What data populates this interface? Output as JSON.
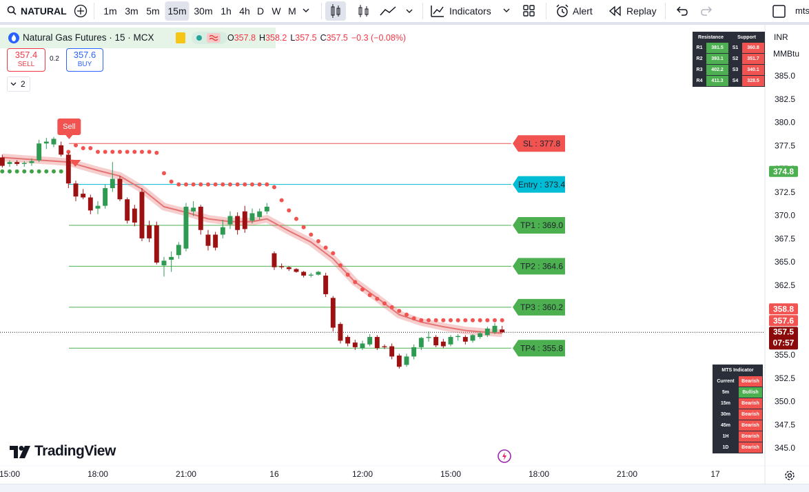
{
  "toolbar": {
    "symbol": "NATURAL",
    "intervals": [
      "1m",
      "3m",
      "5m",
      "15m",
      "30m",
      "1h",
      "4h",
      "D",
      "W",
      "M"
    ],
    "active_interval": "15m",
    "indicators": "Indicators",
    "alert": "Alert",
    "replay": "Replay",
    "user": "mts"
  },
  "legend": {
    "title": "Natural Gas Futures · 15 · MCX",
    "ohlc": [
      {
        "key": "O",
        "value": "357.8"
      },
      {
        "key": "H",
        "value": "358.2"
      },
      {
        "key": "L",
        "value": "357.5"
      },
      {
        "key": "C",
        "value": "357.5"
      }
    ],
    "change": "−0.3 (−0.08%)"
  },
  "order": {
    "sell_price": "357.4",
    "sell": "SELL",
    "spread": "0.2",
    "buy_price": "357.6",
    "buy": "BUY",
    "indicator_count": "2"
  },
  "price_scale": {
    "currency": "INR",
    "unit": "MMBtu"
  },
  "chart_data": {
    "type": "candlestick",
    "xlim": [
      -0.31,
      103.75
    ],
    "ylim": [
      343.15,
      390.26
    ],
    "grid": false,
    "xticks": [
      {
        "value": 1,
        "label": "15:00"
      },
      {
        "value": 13,
        "label": "18:00"
      },
      {
        "value": 25,
        "label": "21:00"
      },
      {
        "value": 37,
        "label": "16"
      },
      {
        "value": 49,
        "label": "12:00"
      },
      {
        "value": 61,
        "label": "15:00"
      },
      {
        "value": 73,
        "label": "18:00"
      },
      {
        "value": 85,
        "label": "21:00"
      },
      {
        "value": 97,
        "label": "17"
      }
    ],
    "yticks": [
      {
        "value": 345,
        "label": "345.0"
      },
      {
        "value": 347.5,
        "label": "347.5"
      },
      {
        "value": 350,
        "label": "350.0"
      },
      {
        "value": 352.5,
        "label": "352.5"
      },
      {
        "value": 355,
        "label": "355.0"
      },
      {
        "value": 357.5,
        "label": "357.5"
      },
      {
        "value": 360,
        "label": "360.0"
      },
      {
        "value": 362.5,
        "label": "362.5"
      },
      {
        "value": 365,
        "label": "365.0"
      },
      {
        "value": 367.5,
        "label": "367.5"
      },
      {
        "value": 370,
        "label": "370.0"
      },
      {
        "value": 372.5,
        "label": "372.5"
      },
      {
        "value": 375,
        "label": "375.0"
      },
      {
        "value": 377.5,
        "label": "377.5"
      },
      {
        "value": 380,
        "label": "380.0"
      },
      {
        "value": 382.5,
        "label": "382.5"
      },
      {
        "value": 385,
        "label": "385.0"
      }
    ],
    "up_color": "#2e9a52",
    "down_color": "#9c1111",
    "open": [
      376.3,
      375.6,
      375.8,
      375.6,
      375.7,
      376.0,
      377.8,
      377.7,
      377.6,
      376.6,
      373.5,
      372.4,
      372.0,
      370.8,
      371.1,
      373.0,
      374.0,
      371.8,
      370.8,
      372.6,
      369.0,
      369.0,
      364.7,
      365.3,
      365.8,
      366.5,
      370.5,
      371.0,
      368.0,
      368.0,
      368.0,
      369.1,
      370.0,
      370.5,
      369.5,
      369.9,
      370.5,
      366.0,
      364.6,
      364.5,
      364.3,
      364.0,
      363.6,
      363.7,
      363.6,
      361.2,
      358.4,
      357.0,
      356.4,
      355.8,
      356.2,
      357.0,
      356.0,
      356.0,
      355.0,
      354.0,
      354.9,
      355.9,
      356.9,
      357.0,
      356.5,
      356.2,
      357.0,
      357.0,
      356.6,
      357.0,
      357.2,
      357.5,
      357.8
    ],
    "high": [
      376.6,
      376.0,
      376.0,
      375.9,
      376.2,
      378.2,
      378.4,
      378.5,
      378.0,
      376.8,
      373.8,
      372.9,
      372.3,
      371.6,
      373.4,
      375.8,
      374.3,
      372.0,
      371.2,
      373.0,
      369.5,
      369.4,
      365.6,
      366.2,
      367.2,
      371.4,
      371.6,
      371.2,
      368.5,
      368.3,
      369.6,
      370.5,
      370.4,
      371.1,
      370.8,
      370.8,
      371.4,
      366.2,
      364.9,
      364.6,
      364.4,
      364.1,
      363.9,
      364.1,
      363.9,
      361.4,
      358.6,
      357.2,
      356.7,
      356.6,
      357.3,
      357.2,
      356.2,
      356.3,
      355.2,
      355.2,
      356.2,
      357.0,
      357.6,
      357.2,
      356.8,
      357.2,
      357.3,
      357.2,
      357.3,
      357.6,
      358.1,
      358.5,
      358.2
    ],
    "low": [
      375.2,
      375.3,
      375.4,
      375.3,
      375.4,
      375.8,
      377.2,
      377.4,
      376.4,
      373.0,
      371.6,
      371.8,
      370.2,
      370.2,
      370.8,
      372.6,
      371.6,
      369.2,
      368.9,
      367.3,
      367.2,
      364.8,
      363.5,
      364.0,
      365.4,
      366.2,
      370.0,
      368.0,
      366.3,
      366.3,
      367.6,
      368.6,
      368.0,
      368.2,
      369.2,
      369.6,
      370.2,
      364.2,
      364.3,
      364.1,
      363.9,
      363.4,
      363.4,
      363.6,
      361.3,
      357.6,
      356.3,
      356.0,
      355.6,
      355.6,
      356.0,
      355.6,
      355.7,
      354.6,
      353.6,
      353.8,
      354.6,
      355.6,
      356.5,
      355.9,
      355.8,
      356.0,
      356.6,
      356.2,
      356.4,
      356.8,
      357.0,
      357.3,
      357.5
    ],
    "close": [
      375.4,
      375.8,
      375.6,
      375.7,
      375.9,
      377.8,
      378.0,
      378.3,
      376.6,
      373.5,
      372.1,
      372.0,
      370.6,
      371.1,
      373.0,
      374.0,
      371.8,
      369.5,
      369.3,
      367.6,
      367.6,
      365.0,
      365.2,
      365.6,
      366.9,
      371.0,
      370.9,
      368.5,
      366.8,
      366.6,
      368.8,
      370.0,
      368.5,
      368.6,
      370.3,
      370.5,
      371.0,
      364.5,
      364.5,
      364.3,
      364.0,
      363.6,
      363.7,
      364.0,
      361.6,
      358.0,
      356.6,
      356.3,
      355.9,
      356.3,
      357.0,
      355.8,
      355.9,
      354.9,
      353.8,
      354.9,
      355.9,
      356.9,
      357.0,
      356.1,
      356.0,
      357.0,
      357.1,
      356.5,
      357.2,
      357.4,
      357.9,
      358.2,
      357.5
    ],
    "ma": {
      "color": "#e57373",
      "x": [
        0,
        9,
        13,
        16,
        19,
        22,
        25,
        28,
        31,
        34,
        36,
        39,
        42,
        45,
        48,
        51,
        54,
        57,
        60,
        63,
        66,
        68
      ],
      "values": [
        376.3,
        375.8,
        374.9,
        374.3,
        372.9,
        371.0,
        370.4,
        369.7,
        369.4,
        369.4,
        369.7,
        368.4,
        367.2,
        365.4,
        362.9,
        361.2,
        359.4,
        358.6,
        358.1,
        357.7,
        357.5,
        357.4
      ]
    },
    "green_dots": {
      "color": "#43a047",
      "x": [
        0,
        1,
        2,
        3,
        4,
        5,
        6,
        7,
        8
      ],
      "values": [
        374.8,
        374.8,
        374.8,
        374.8,
        374.8,
        374.8,
        374.8,
        374.8,
        374.8
      ]
    },
    "dots": {
      "color": "#f05350",
      "x": [
        9,
        10,
        11,
        12,
        13,
        14,
        15,
        16,
        17,
        18,
        19,
        20,
        21,
        22,
        23,
        24,
        25,
        26,
        27,
        28,
        29,
        30,
        31,
        32,
        33,
        34,
        35,
        36,
        37,
        38,
        39,
        40,
        41,
        42,
        43,
        44,
        45,
        46,
        47,
        48,
        49,
        50,
        51,
        52,
        53,
        54,
        55,
        56,
        57,
        58,
        59,
        60,
        61,
        62,
        63,
        64,
        65,
        66,
        67,
        68
      ],
      "values": [
        376.9,
        377.6,
        377.3,
        377.3,
        376.9,
        376.9,
        376.9,
        376.9,
        376.9,
        376.9,
        376.9,
        376.9,
        376.8,
        374.6,
        373.7,
        373.4,
        373.4,
        373.4,
        373.4,
        373.4,
        373.4,
        373.4,
        373.4,
        373.4,
        373.4,
        373.4,
        373.4,
        373.4,
        373.1,
        371.7,
        370.6,
        369.7,
        368.8,
        368.0,
        367.3,
        366.6,
        366.0,
        364.7,
        363.7,
        362.9,
        362.1,
        361.5,
        361.1,
        360.6,
        360.2,
        359.8,
        359.4,
        359.0,
        358.8,
        358.8,
        358.8,
        358.8,
        358.8,
        358.8,
        358.8,
        358.8,
        358.8,
        358.8,
        358.8,
        358.8
      ]
    },
    "signal": {
      "text": "Sell",
      "x": 9,
      "color": "#f05350"
    },
    "levels": [
      {
        "text": "SL : 377.8",
        "value": 377.8,
        "color": "#f05350"
      },
      {
        "text": "Entry : 373.4",
        "value": 373.4,
        "color": "#00bcd4"
      },
      {
        "text": "TP1 : 369.0",
        "value": 369.0,
        "color": "#4caf50"
      },
      {
        "text": "TP2 : 364.6",
        "value": 364.6,
        "color": "#4caf50"
      },
      {
        "text": "TP3 : 360.2",
        "value": 360.2,
        "color": "#4caf50"
      },
      {
        "text": "TP4 : 355.8",
        "value": 355.8,
        "color": "#4caf50"
      }
    ],
    "price_badges": [
      {
        "value": 374.8,
        "color": "#4caf50"
      },
      {
        "value": 358.8,
        "color": "#f05350"
      },
      {
        "value": 357.6,
        "color": "#f05350"
      }
    ],
    "last_price": 357.5,
    "last_color": "#8b0a0a",
    "countdown": "07:57"
  },
  "resistance_support": {
    "headers": [
      "Resistance",
      "Support"
    ],
    "rows": [
      [
        "R1",
        "381.5",
        "S1",
        "360.8"
      ],
      [
        "R2",
        "393.1",
        "S2",
        "351.7"
      ],
      [
        "R3",
        "402.2",
        "S3",
        "340.1"
      ],
      [
        "R4",
        "411.3",
        "S4",
        "328.5"
      ]
    ]
  },
  "mts_indicator": {
    "title": "MTS Indicator",
    "rows": [
      {
        "tf": "Current",
        "signal": "Bearish",
        "color": "#f05350"
      },
      {
        "tf": "5m",
        "signal": "Bullish",
        "color": "#4caf50"
      },
      {
        "tf": "15m",
        "signal": "Bearish",
        "color": "#f05350"
      },
      {
        "tf": "30m",
        "signal": "Bearish",
        "color": "#f05350"
      },
      {
        "tf": "45m",
        "signal": "Bearish",
        "color": "#f05350"
      },
      {
        "tf": "1H",
        "signal": "Bearish",
        "color": "#f05350"
      },
      {
        "tf": "1D",
        "signal": "Bearish",
        "color": "#f05350"
      }
    ]
  },
  "watermark": "TradingView"
}
